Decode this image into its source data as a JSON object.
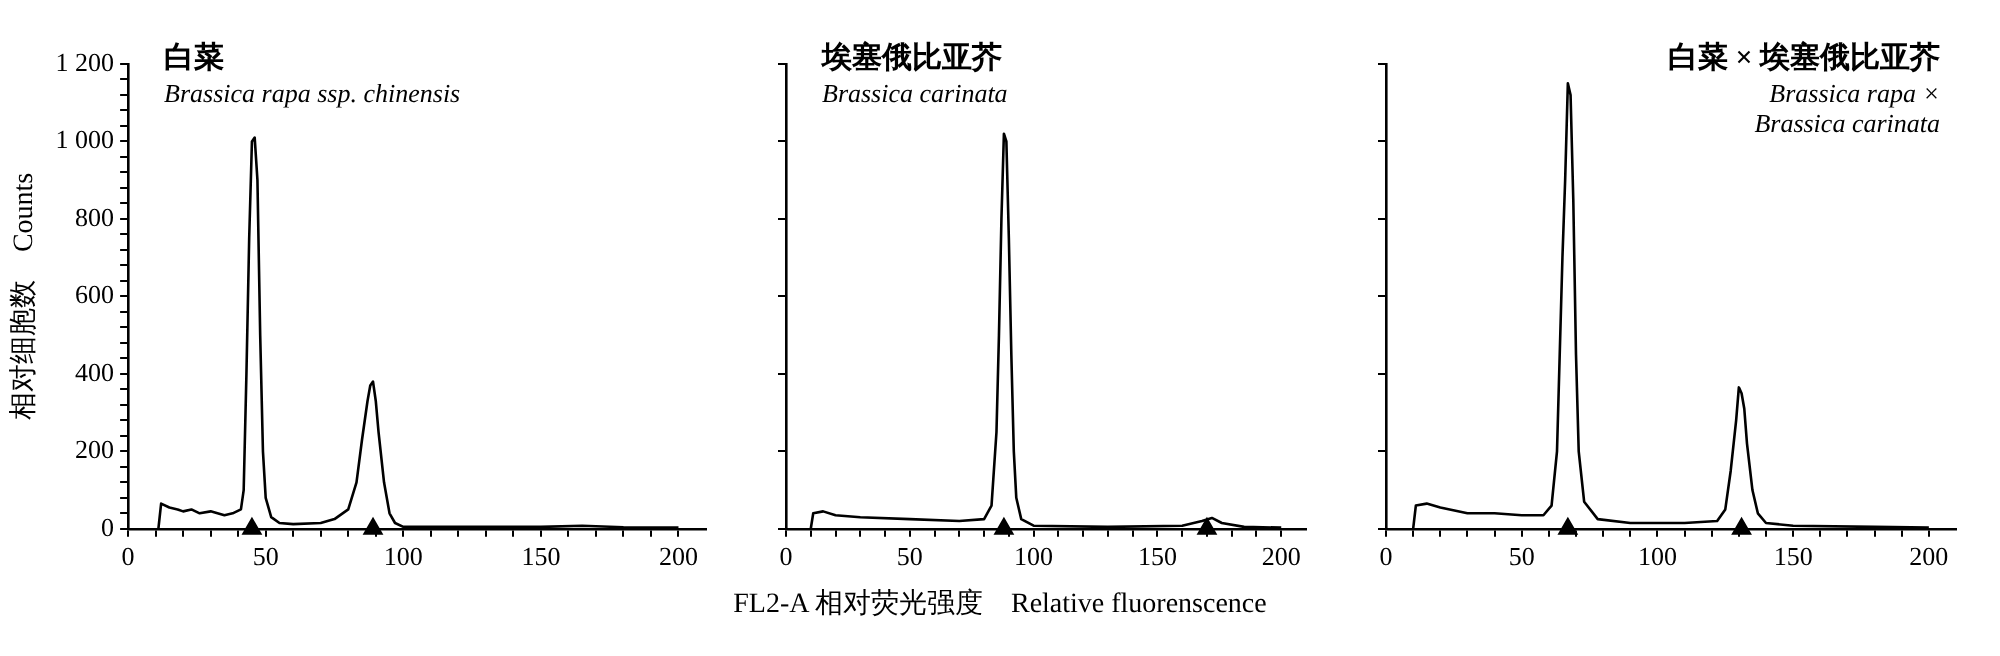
{
  "chart_data": [
    {
      "type": "line",
      "title": "白菜",
      "subtitle": "Brassica rapa ssp. chinensis",
      "ylabel": "相对细胞数　Counts",
      "xlim": [
        0,
        210
      ],
      "xticks": [
        0,
        {
          "value": 10,
          "label": null
        },
        {
          "value": 20,
          "label": null
        },
        {
          "value": 30,
          "label": null
        },
        {
          "value": 40,
          "label": null
        },
        50,
        {
          "value": 60,
          "label": null
        },
        {
          "value": 70,
          "label": null
        },
        {
          "value": 80,
          "label": null
        },
        {
          "value": 90,
          "label": null
        },
        100,
        {
          "value": 110,
          "label": null
        },
        {
          "value": 120,
          "label": null
        },
        {
          "value": 130,
          "label": null
        },
        {
          "value": 140,
          "label": null
        },
        150,
        {
          "value": 160,
          "label": null
        },
        {
          "value": 170,
          "label": null
        },
        {
          "value": 180,
          "label": null
        },
        {
          "value": 190,
          "label": null
        },
        200
      ],
      "ylim": [
        0,
        1200
      ],
      "yticks": [
        0,
        {
          "value": 40,
          "label": null
        },
        {
          "value": 80,
          "label": null
        },
        {
          "value": 120,
          "label": null
        },
        {
          "value": 160,
          "label": null
        },
        200,
        {
          "value": 240,
          "label": null
        },
        {
          "value": 280,
          "label": null
        },
        {
          "value": 320,
          "label": null
        },
        {
          "value": 360,
          "label": null
        },
        400,
        {
          "value": 440,
          "label": null
        },
        {
          "value": 480,
          "label": null
        },
        {
          "value": 520,
          "label": null
        },
        {
          "value": 560,
          "label": null
        },
        600,
        {
          "value": 640,
          "label": null
        },
        {
          "value": 680,
          "label": null
        },
        {
          "value": 720,
          "label": null
        },
        {
          "value": 760,
          "label": null
        },
        800,
        {
          "value": 840,
          "label": null
        },
        {
          "value": 880,
          "label": null
        },
        {
          "value": 920,
          "label": null
        },
        {
          "value": 960,
          "label": null
        },
        {
          "value": 1000,
          "label": "1 000"
        },
        {
          "value": 1040,
          "label": null
        },
        {
          "value": 1080,
          "label": null
        },
        {
          "value": 1120,
          "label": null
        },
        {
          "value": 1160,
          "label": null
        },
        {
          "value": 1200,
          "label": "1 200"
        }
      ],
      "grid": false,
      "legend": false,
      "series": [
        {
          "color": "#000000",
          "marker": "none",
          "x": [
            11,
            12,
            15,
            18,
            20,
            23,
            26,
            30,
            35,
            38,
            41,
            42,
            43,
            44,
            45,
            46,
            47,
            48,
            49,
            50,
            52,
            55,
            60,
            70,
            75,
            80,
            83,
            85,
            87,
            88,
            89,
            90,
            91,
            93,
            95,
            97,
            100,
            120,
            150,
            165,
            180,
            200
          ],
          "values": [
            0,
            65,
            55,
            50,
            45,
            50,
            40,
            45,
            35,
            40,
            50,
            100,
            400,
            750,
            1000,
            1010,
            900,
            500,
            200,
            80,
            30,
            15,
            12,
            15,
            25,
            50,
            120,
            230,
            330,
            370,
            380,
            330,
            250,
            120,
            40,
            15,
            5,
            5,
            5,
            8,
            4,
            3
          ]
        },
        {
          "type": "scatter",
          "color": "#000000",
          "marker": "triangle",
          "x": [
            45,
            89
          ],
          "values": [
            0,
            0
          ]
        }
      ]
    },
    {
      "type": "line",
      "title": "埃塞俄比亚芥",
      "subtitle": "Brassica carinata",
      "xlabel": "FL2-A  相对荧光强度　Relative fluorenscence",
      "xlim": [
        0,
        210
      ],
      "xticks": [
        0,
        {
          "value": 10,
          "label": null
        },
        {
          "value": 20,
          "label": null
        },
        {
          "value": 30,
          "label": null
        },
        {
          "value": 40,
          "label": null
        },
        50,
        {
          "value": 60,
          "label": null
        },
        {
          "value": 70,
          "label": null
        },
        {
          "value": 80,
          "label": null
        },
        {
          "value": 90,
          "label": null
        },
        100,
        {
          "value": 110,
          "label": null
        },
        {
          "value": 120,
          "label": null
        },
        {
          "value": 130,
          "label": null
        },
        {
          "value": 140,
          "label": null
        },
        150,
        {
          "value": 160,
          "label": null
        },
        {
          "value": 170,
          "label": null
        },
        {
          "value": 180,
          "label": null
        },
        {
          "value": 190,
          "label": null
        },
        200
      ],
      "ylim": [
        0,
        1200
      ],
      "yticks": [
        0,
        200,
        400,
        600,
        800,
        1000,
        1200
      ],
      "tick_labels": "x",
      "grid": false,
      "legend": false,
      "series": [
        {
          "color": "#000000",
          "marker": "none",
          "x": [
            10,
            11,
            15,
            20,
            30,
            50,
            70,
            80,
            83,
            85,
            86,
            87,
            88,
            89,
            90,
            91,
            92,
            93,
            95,
            100,
            130,
            160,
            168,
            172,
            176,
            185,
            200
          ],
          "values": [
            0,
            40,
            45,
            35,
            30,
            25,
            20,
            25,
            60,
            250,
            500,
            800,
            1020,
            1000,
            750,
            450,
            200,
            80,
            25,
            8,
            5,
            8,
            20,
            28,
            15,
            5,
            3
          ]
        },
        {
          "type": "scatter",
          "color": "#000000",
          "marker": "triangle",
          "x": [
            88,
            170
          ],
          "values": [
            0,
            0
          ]
        }
      ]
    },
    {
      "type": "line",
      "title": "白菜 × 埃塞俄比亚芥",
      "subtitle": "Brassica rapa × Brassica carinata",
      "xlim": [
        0,
        210
      ],
      "xticks": [
        0,
        {
          "value": 10,
          "label": null
        },
        {
          "value": 20,
          "label": null
        },
        {
          "value": 30,
          "label": null
        },
        {
          "value": 40,
          "label": null
        },
        50,
        {
          "value": 60,
          "label": null
        },
        {
          "value": 70,
          "label": null
        },
        {
          "value": 80,
          "label": null
        },
        {
          "value": 90,
          "label": null
        },
        100,
        {
          "value": 110,
          "label": null
        },
        {
          "value": 120,
          "label": null
        },
        {
          "value": 130,
          "label": null
        },
        {
          "value": 140,
          "label": null
        },
        150,
        {
          "value": 160,
          "label": null
        },
        {
          "value": 170,
          "label": null
        },
        {
          "value": 180,
          "label": null
        },
        {
          "value": 190,
          "label": null
        },
        200
      ],
      "ylim": [
        0,
        1200
      ],
      "yticks": [
        0,
        200,
        400,
        600,
        800,
        1000,
        1200
      ],
      "tick_labels": "x",
      "grid": false,
      "legend": false,
      "series": [
        {
          "color": "#000000",
          "marker": "none",
          "x": [
            10,
            11,
            15,
            20,
            30,
            40,
            50,
            58,
            61,
            63,
            64,
            65,
            66,
            67,
            68,
            69,
            70,
            71,
            73,
            78,
            90,
            110,
            122,
            125,
            127,
            129,
            130,
            131,
            132,
            133,
            135,
            137,
            140,
            150,
            180,
            200
          ],
          "values": [
            0,
            60,
            65,
            55,
            40,
            40,
            35,
            35,
            60,
            200,
            450,
            700,
            900,
            1150,
            1120,
            850,
            450,
            200,
            70,
            25,
            15,
            15,
            20,
            50,
            150,
            280,
            365,
            350,
            310,
            220,
            100,
            40,
            15,
            8,
            5,
            3
          ]
        },
        {
          "type": "scatter",
          "color": "#000000",
          "marker": "triangle",
          "x": [
            67,
            131
          ],
          "values": [
            0,
            0
          ]
        }
      ]
    }
  ]
}
